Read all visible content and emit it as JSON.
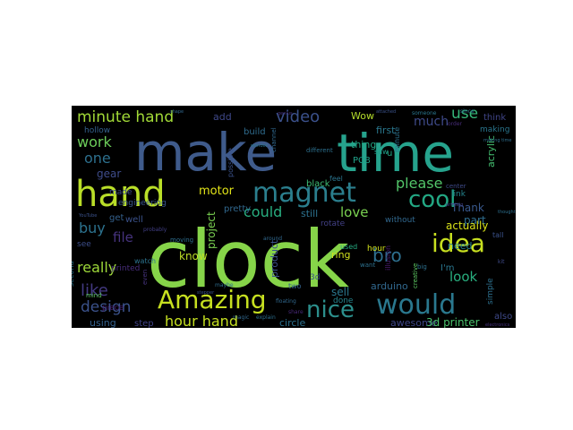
{
  "word_cloud": {
    "background": "#000000",
    "words": [
      {
        "text": "make",
        "color": "#3f5b8c"
      },
      {
        "text": "time",
        "color": "#26a38d"
      },
      {
        "text": "clock",
        "color": "#86d449"
      },
      {
        "text": "hand",
        "color": "#b9de28"
      },
      {
        "text": "magnet",
        "color": "#2b7f8e"
      },
      {
        "text": "Amazing",
        "color": "#c7e020"
      },
      {
        "text": "would",
        "color": "#2a788e"
      },
      {
        "text": "idea",
        "color": "#c8e020"
      },
      {
        "text": "cool",
        "color": "#23a884"
      },
      {
        "text": "nice",
        "color": "#2c8f8c"
      },
      {
        "text": "minute hand",
        "color": "#a2da37"
      },
      {
        "text": "video",
        "color": "#3b518b"
      },
      {
        "text": "use",
        "color": "#35b779"
      },
      {
        "text": "work",
        "color": "#6ccd5a"
      },
      {
        "text": "one",
        "color": "#2d708e"
      },
      {
        "text": "please",
        "color": "#52c569"
      },
      {
        "text": "bro",
        "color": "#2e6f8e"
      },
      {
        "text": "really",
        "color": "#9fda3a"
      },
      {
        "text": "like",
        "color": "#443a83"
      },
      {
        "text": "design",
        "color": "#3b528b"
      },
      {
        "text": "hour hand",
        "color": "#c5e021"
      },
      {
        "text": "could",
        "color": "#28ae80"
      },
      {
        "text": "love",
        "color": "#7ad151"
      },
      {
        "text": "look",
        "color": "#29af7f"
      },
      {
        "text": "buy",
        "color": "#2c728e"
      },
      {
        "text": "file",
        "color": "#46337e"
      },
      {
        "text": "much",
        "color": "#3e4a89"
      },
      {
        "text": "motor",
        "color": "#e2e418"
      },
      {
        "text": "know",
        "color": "#bddf26"
      },
      {
        "text": "Thank",
        "color": "#38588c"
      },
      {
        "text": "part",
        "color": "#2e6d8e"
      },
      {
        "text": "actually",
        "color": "#d8e219"
      },
      {
        "text": "gear",
        "color": "#3e4c8a"
      },
      {
        "text": "project",
        "color": "#7ad151"
      },
      {
        "text": "product",
        "color": "#3b528b"
      },
      {
        "text": "sell",
        "color": "#2a778e"
      },
      {
        "text": "arduino",
        "color": "#31688e"
      },
      {
        "text": "awesome",
        "color": "#3f4788"
      },
      {
        "text": "3d printer",
        "color": "#4ac16d"
      },
      {
        "text": "circle",
        "color": "#2c718e"
      },
      {
        "text": "using",
        "color": "#34618d"
      },
      {
        "text": "step",
        "color": "#404387"
      },
      {
        "text": "printed",
        "color": "#472d7b"
      },
      {
        "text": "ring",
        "color": "#d0e11c"
      },
      {
        "text": "still",
        "color": "#2c718e"
      },
      {
        "text": "pretty",
        "color": "#31688e"
      },
      {
        "text": "engineering",
        "color": "#39568c"
      },
      {
        "text": "made",
        "color": "#3e4a89"
      },
      {
        "text": "add",
        "color": "#3f4889"
      },
      {
        "text": "build",
        "color": "#2f6c8e"
      },
      {
        "text": "Wow",
        "color": "#b5de2b"
      },
      {
        "text": "first",
        "color": "#2a788e"
      },
      {
        "text": "thing",
        "color": "#22a785"
      },
      {
        "text": "PCB",
        "color": "#1fa188"
      },
      {
        "text": "black",
        "color": "#3dbc74"
      },
      {
        "text": "acrylic",
        "color": "#44bf70"
      },
      {
        "text": "think",
        "color": "#404588"
      },
      {
        "text": "making",
        "color": "#2a768e"
      },
      {
        "text": "hollow",
        "color": "#34618d"
      },
      {
        "text": "need",
        "color": "#277f8e"
      },
      {
        "text": "also",
        "color": "#3e4989"
      },
      {
        "text": "simple",
        "color": "#2d708e"
      },
      {
        "text": "watch",
        "color": "#2c738e"
      },
      {
        "text": "piece",
        "color": "#481f70"
      },
      {
        "text": "second",
        "color": "#2a768e"
      },
      {
        "text": "see",
        "color": "#3d4e8a"
      },
      {
        "text": "get",
        "color": "#34618d"
      },
      {
        "text": "well",
        "color": "#3b528b"
      },
      {
        "text": "done",
        "color": "#25848e"
      },
      {
        "text": "used",
        "color": "#25ac82"
      },
      {
        "text": "two",
        "color": "#34618d"
      },
      {
        "text": "hour",
        "color": "#d2e21b"
      },
      {
        "text": "I'm",
        "color": "#2a768e"
      },
      {
        "text": "want",
        "color": "#2d708e"
      },
      {
        "text": "3d",
        "color": "#3b528b"
      },
      {
        "text": "center",
        "color": "#3e4a89"
      },
      {
        "text": "link",
        "color": "#25858e"
      },
      {
        "text": "without",
        "color": "#31688e"
      },
      {
        "text": "u",
        "color": "#22a884"
      },
      {
        "text": "even",
        "color": "#46337e"
      },
      {
        "text": "mind",
        "color": "#5ec962"
      },
      {
        "text": "rotate",
        "color": "#424086"
      },
      {
        "text": "possible",
        "color": "#3b528b"
      },
      {
        "text": "minute",
        "color": "#2c728e"
      },
      {
        "text": "feel",
        "color": "#2b748e"
      },
      {
        "text": "saw",
        "color": "#1f9e89"
      },
      {
        "text": "illusion",
        "color": "#481a6c"
      },
      {
        "text": "moving",
        "color": "#2e6e8e"
      },
      {
        "text": "different",
        "color": "#2d708e"
      },
      {
        "text": "someone",
        "color": "#2a778e"
      },
      {
        "text": "order",
        "color": "#472c7a"
      },
      {
        "text": "since",
        "color": "#2f6b8e"
      },
      {
        "text": "channel",
        "color": "#31688e"
      },
      {
        "text": "tall",
        "color": "#3b528b"
      },
      {
        "text": "big",
        "color": "#2d708e"
      },
      {
        "text": "probably",
        "color": "#423f85"
      },
      {
        "text": "around",
        "color": "#31688e"
      },
      {
        "text": "maybe",
        "color": "#2e6e8e"
      },
      {
        "text": "creative",
        "color": "#5ec962"
      },
      {
        "text": "YouTube",
        "color": "#3b528b"
      },
      {
        "text": "magic",
        "color": "#31688e"
      },
      {
        "text": "explain",
        "color": "#2d708e"
      },
      {
        "text": "share",
        "color": "#482878"
      },
      {
        "text": "electronics",
        "color": "#46337e"
      },
      {
        "text": "floating",
        "color": "#31688e"
      },
      {
        "text": "attached",
        "color": "#3b528b"
      },
      {
        "text": "thought",
        "color": "#2d708e"
      },
      {
        "text": "printing",
        "color": "#424086"
      },
      {
        "text": "kit",
        "color": "#3e4a89"
      },
      {
        "text": "genius",
        "color": "#46337e"
      },
      {
        "text": "shape",
        "color": "#31688e"
      },
      {
        "text": "wonder",
        "color": "#2a778e"
      },
      {
        "text": "stepper",
        "color": "#3b528b"
      },
      {
        "text": "making time",
        "color": "#2e6e8e"
      }
    ]
  }
}
